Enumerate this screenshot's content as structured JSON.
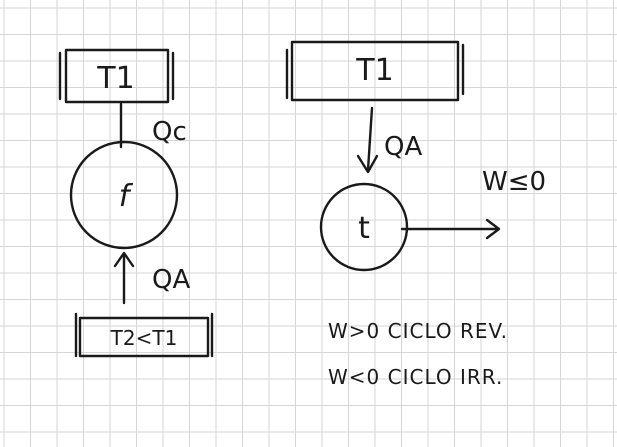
{
  "left": {
    "hot_reservoir": "T1",
    "machine": "f",
    "heat_out": "Qc",
    "heat_in": "QA",
    "cold_reservoir": "T2<T1"
  },
  "right": {
    "reservoir": "T1",
    "heat_in": "QA",
    "machine": "t",
    "work_out": "W≤0"
  },
  "notes": {
    "reversible": "W>0 CICLO REV.",
    "irreversible": "W<0 CICLO IRR."
  },
  "colors": {
    "grid": "#d6d6d6",
    "ink": "#1a1a1a",
    "background": "#ffffff"
  }
}
